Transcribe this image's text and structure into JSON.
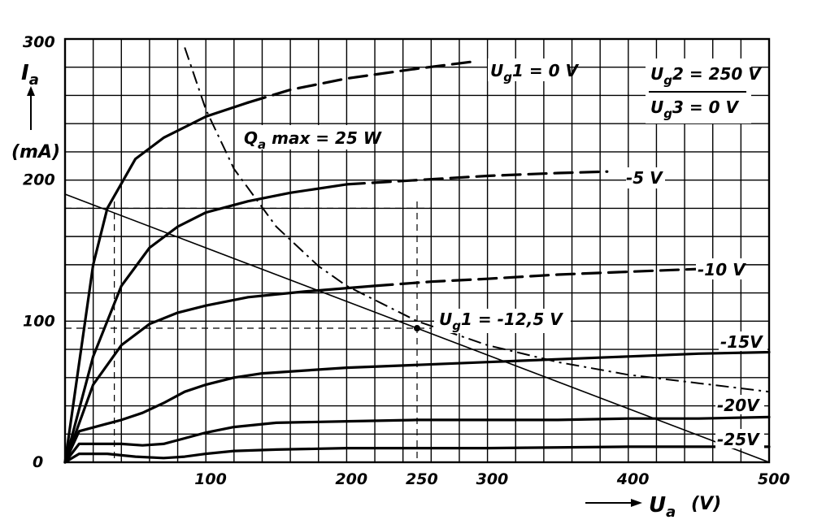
{
  "chart_data": {
    "type": "line",
    "xlabel": "U_a",
    "x_unit": "(V)",
    "ylabel": "I_a",
    "y_unit": "(mA)",
    "xlim": [
      0,
      500
    ],
    "ylim": [
      0,
      300
    ],
    "x_ticks": [
      "100",
      "200",
      "250",
      "300",
      "400",
      "500"
    ],
    "x_tick_values": [
      100,
      200,
      250,
      300,
      400,
      500
    ],
    "y_ticks": [
      "0",
      "100",
      "200",
      "300"
    ],
    "y_tick_values": [
      0,
      100,
      200,
      300
    ],
    "grid": true,
    "conditions": [
      "U_g2 = 250 V",
      "U_g3 = 0 V"
    ],
    "series": [
      {
        "name": "U_g1 = 0 V",
        "style": "solid+dashed",
        "x": [
          0,
          10,
          20,
          30,
          50,
          70,
          100,
          130,
          160,
          200,
          250,
          290
        ],
        "y": [
          0,
          70,
          140,
          180,
          215,
          230,
          245,
          255,
          264,
          272,
          279,
          284
        ]
      },
      {
        "name": "-5 V",
        "style": "solid+dashed",
        "x": [
          0,
          20,
          40,
          60,
          80,
          100,
          130,
          160,
          200,
          250,
          300,
          350,
          385
        ],
        "y": [
          0,
          75,
          125,
          152,
          167,
          177,
          185,
          191,
          197,
          200,
          203,
          205,
          206
        ]
      },
      {
        "name": "-10 V",
        "style": "solid+dashed",
        "x": [
          0,
          20,
          40,
          60,
          80,
          100,
          130,
          170,
          220,
          260,
          300,
          350,
          400,
          450
        ],
        "y": [
          0,
          55,
          83,
          98,
          106,
          111,
          117,
          121,
          125,
          128,
          130,
          133,
          135,
          137
        ]
      },
      {
        "name": "-15 V",
        "style": "solid",
        "x": [
          0,
          10,
          25,
          40,
          55,
          70,
          85,
          100,
          120,
          140,
          170,
          200,
          250,
          300,
          350,
          400,
          450,
          500
        ],
        "y": [
          0,
          22,
          26,
          30,
          35,
          42,
          50,
          55,
          60,
          63,
          65,
          67,
          69,
          71,
          73,
          75,
          77,
          78
        ]
      },
      {
        "name": "-20 V",
        "style": "solid",
        "x": [
          0,
          10,
          25,
          40,
          55,
          70,
          85,
          100,
          120,
          150,
          200,
          250,
          300,
          350,
          400,
          450,
          500
        ],
        "y": [
          0,
          13,
          13,
          13,
          12,
          13,
          17,
          21,
          25,
          28,
          29,
          30,
          30,
          30,
          31,
          31,
          32
        ]
      },
      {
        "name": "-25 V",
        "style": "solid",
        "x": [
          0,
          10,
          30,
          50,
          70,
          85,
          100,
          120,
          150,
          200,
          300,
          400,
          500
        ],
        "y": [
          0,
          6,
          6,
          4,
          3,
          4,
          6,
          8,
          9,
          10,
          10,
          11,
          11
        ]
      }
    ],
    "annotations": {
      "max_dissipation": {
        "label": "Q_a max = 25 W",
        "x": [
          85,
          100,
          120,
          150,
          180,
          200,
          250,
          300,
          350,
          400,
          450,
          500
        ],
        "y": [
          294,
          250,
          208,
          167,
          139,
          125,
          100,
          83,
          71,
          62,
          56,
          50
        ]
      },
      "load_line": {
        "x": [
          0,
          500
        ],
        "y": [
          190,
          0
        ]
      },
      "operating_point": {
        "x": 250,
        "y": 95,
        "label": "U_g1 = -12.5 V"
      },
      "reference_lines": {
        "x_values": [
          35,
          250
        ],
        "y_values": [
          180,
          95
        ]
      }
    }
  },
  "labels": {
    "ug1_0": "U",
    "ug1_0_sub": "g",
    "ug1_0_rest": "1 = 0 V",
    "minus5": "-5 V",
    "minus10": "-10 V",
    "minus15": "-15V",
    "minus20": "-20V",
    "minus25": "-25V",
    "op_label": "U",
    "op_label_sub": "g",
    "op_label_rest": "1 = -12,5 V",
    "qa_Q": "Q",
    "qa_sub": "a",
    "qa_rest": " max = 25 W",
    "cond1_U": "U",
    "cond1_sub": "g",
    "cond1_rest": "2 = 250 V",
    "cond2_U": "U",
    "cond2_sub": "g",
    "cond2_rest": "3 = 0 V",
    "y_axis_I": "I",
    "y_axis_sub": "a",
    "y_unit": "(mA)",
    "x_axis_U": "U",
    "x_axis_sub": "a",
    "x_unit": "(V)"
  }
}
